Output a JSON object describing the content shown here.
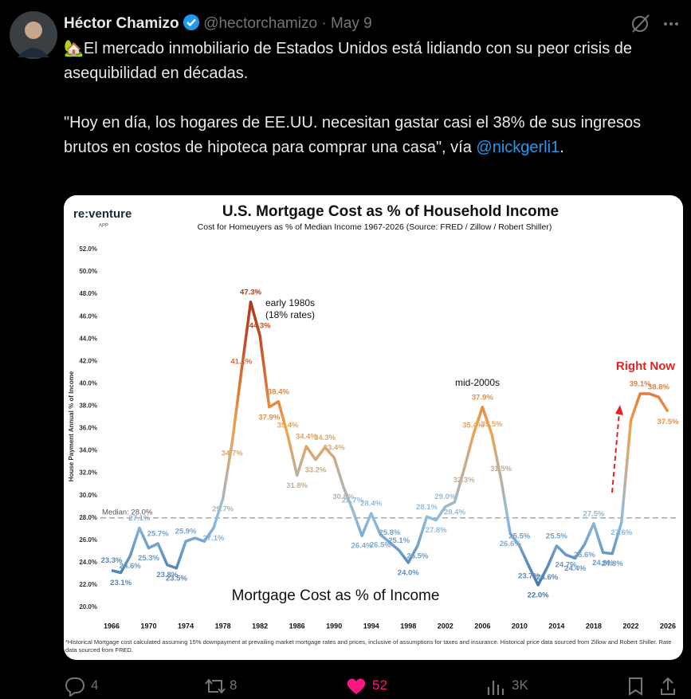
{
  "tweet": {
    "author": "Héctor Chamizo",
    "handle": "@hectorchamizo",
    "separator": "·",
    "date": "May 9",
    "paragraph_1": "🏡El mercado inmobiliario de Estados Unidos está lidiando con su peor crisis de asequibilidad en décadas.",
    "paragraph_2": "\"Hoy en día, los hogares de EE.UU. necesitan gastar casi el 38% de sus ingresos brutos en costos de hipoteca para comprar una casa\", vía ",
    "mention": "@nickgerli1",
    "end": ".",
    "replies": "4",
    "reposts": "8",
    "likes": "52",
    "views": "3K"
  },
  "chart_data": {
    "type": "line",
    "logo": "re:venture",
    "logo_sub": "APP",
    "title": "U.S. Mortgage Cost as % of Household Income",
    "subtitle": "Cost for Homeuyers as % of Median Income 1967-2026 (Source: FRED / Zillow / Robert Shiller)",
    "y_label": "House Payment Annual % of Income",
    "footnote": "*Historical Mortgage cost calculated assuming 15% downpayment at prevailing market mortgage rates and prices, inclusive of assumptions for taxes and insurance. Historical price data sourced from Zillow and Robert Shiller. Rate data sourced from FRED.",
    "annotations": [
      "early 1980s",
      "(18% rates)",
      "mid-2000s",
      "Right Now"
    ],
    "median": {
      "value": 28,
      "label": "Median: 28.0%"
    },
    "x": [
      1966,
      1967,
      1968,
      1969,
      1970,
      1971,
      1972,
      1973,
      1974,
      1975,
      1976,
      1977,
      1978,
      1979,
      1980,
      1981,
      1982,
      1983,
      1984,
      1985,
      1986,
      1987,
      1988,
      1989,
      1990,
      1991,
      1992,
      1993,
      1994,
      1995,
      1996,
      1997,
      1998,
      1999,
      2000,
      2001,
      2002,
      2003,
      2004,
      2005,
      2006,
      2007,
      2008,
      2009,
      2010,
      2011,
      2012,
      2013,
      2014,
      2015,
      2016,
      2017,
      2018,
      2019,
      2020,
      2021,
      2022,
      2023,
      2024,
      2025,
      2026
    ],
    "series": [
      {
        "name": "Mortgage Cost as % of Income",
        "colors": [
          "#2f5f98",
          "#8fbde0",
          "#f0a24e",
          "#c24a24",
          "#8e2414"
        ],
        "values": [
          23.3,
          23.1,
          24.6,
          27.1,
          25.3,
          25.7,
          23.8,
          23.5,
          25.9,
          26.2,
          25.9,
          27.1,
          29.7,
          34.7,
          41.1,
          47.3,
          44.3,
          37.9,
          38.4,
          35.4,
          31.8,
          34.4,
          33.2,
          34.3,
          33.4,
          30.8,
          28.7,
          26.4,
          28.4,
          26.5,
          25.8,
          25.1,
          24.0,
          25.5,
          28.1,
          27.8,
          29.0,
          29.4,
          32.3,
          35.4,
          37.9,
          35.5,
          31.5,
          26.6,
          25.5,
          23.7,
          22.0,
          23.6,
          25.5,
          24.7,
          24.4,
          25.6,
          27.5,
          24.9,
          24.8,
          27.6,
          36.7,
          39.1,
          39.1,
          38.8,
          37.5
        ],
        "value_labels": [
          "23.3%",
          "23.1%",
          "24.6%",
          "27.1%",
          "25.3%",
          "25.7%",
          "23.8%",
          "23.5%",
          "25.9%",
          null,
          null,
          "27.1%",
          "29.7%",
          "34.7%",
          "41.1%",
          "47.3%",
          "44.3%",
          "37.9%",
          "38.4%",
          "35.4%",
          "31.8%",
          "34.4%",
          "33.2%",
          "34.3%",
          "33.4%",
          "30.8%",
          "28.7%",
          "26.4%",
          "28.4%",
          "26.5%",
          "25.8%",
          "25.1%",
          "24.0%",
          "25.5%",
          "28.1%",
          "27.8%",
          "29.0%",
          "29.4%",
          "32.3%",
          "35.4%",
          "37.9%",
          "35.5%",
          "31.5%",
          "26.6%",
          "25.5%",
          "23.7%",
          "22.0%",
          "23.6%",
          "25.5%",
          "24.7%",
          "24.4%",
          "25.6%",
          "27.5%",
          "24.9%",
          "24.8%",
          "27.6%",
          null,
          "39.1%",
          null,
          "38.8%",
          "37.5%"
        ]
      }
    ],
    "xlim": [
      1966,
      2026
    ],
    "xticks": [
      1966,
      1970,
      1974,
      1978,
      1982,
      1986,
      1990,
      1994,
      1998,
      2002,
      2006,
      2010,
      2014,
      2018,
      2022,
      2026
    ],
    "ylim": [
      20,
      52
    ],
    "yticks": [
      {
        "value": 20,
        "label": "20.0%"
      },
      {
        "value": 22,
        "label": "22.0%"
      },
      {
        "value": 24,
        "label": "24.0%"
      },
      {
        "value": 26,
        "label": "26.0%"
      },
      {
        "value": 28,
        "label": "28.0%"
      },
      {
        "value": 30,
        "label": "30.0%"
      },
      {
        "value": 32,
        "label": "32.0%"
      },
      {
        "value": 34,
        "label": "34.0%"
      },
      {
        "value": 36,
        "label": "36.0%"
      },
      {
        "value": 38,
        "label": "38.0%"
      },
      {
        "value": 40,
        "label": "40.0%"
      },
      {
        "value": 42,
        "label": "42.0%"
      },
      {
        "value": 44,
        "label": "44.0%"
      },
      {
        "value": 46,
        "label": "46.0%"
      },
      {
        "value": 48,
        "label": "48.0%"
      },
      {
        "value": 50,
        "label": "50.0%"
      },
      {
        "value": 52,
        "label": "52.0%"
      }
    ],
    "grid": false
  }
}
